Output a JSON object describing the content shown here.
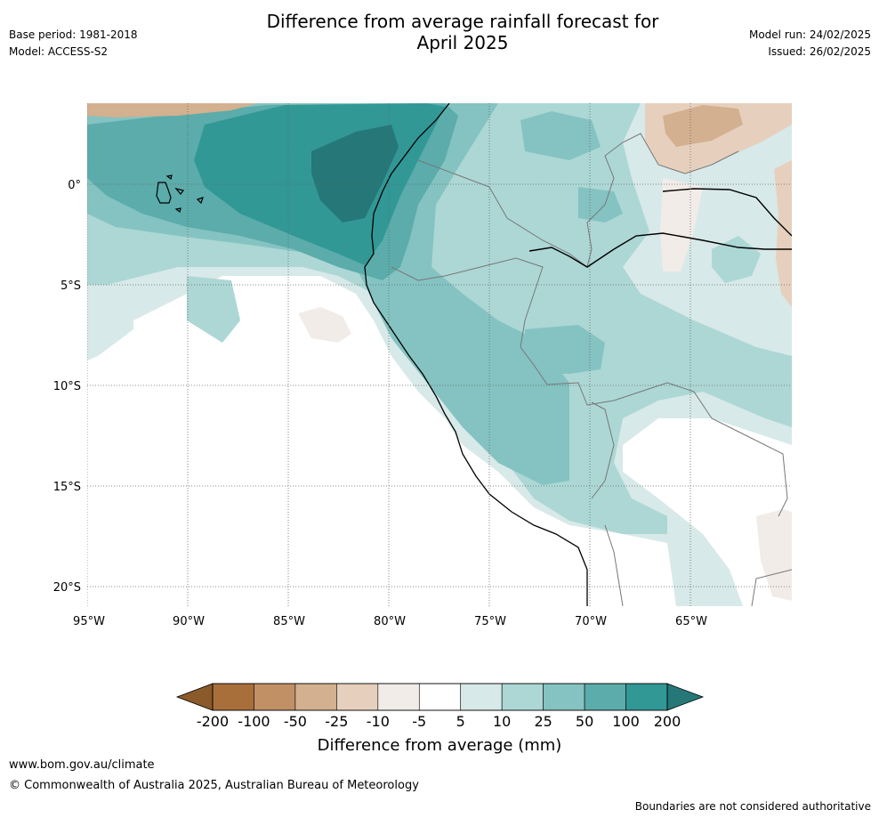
{
  "header": {
    "title_line1": "Difference from average rainfall forecast for",
    "title_line2": "April 2025",
    "base_period": "Base period: 1981-2018",
    "model": "Model: ACCESS-S2",
    "model_run": "Model run: 24/02/2025",
    "issued": "Issued: 26/02/2025"
  },
  "map": {
    "lat_labels": [
      "0°",
      "5°S",
      "10°S",
      "15°S",
      "20°S"
    ],
    "lon_labels": [
      "95°W",
      "90°W",
      "85°W",
      "80°W",
      "75°W",
      "70°W",
      "65°W"
    ]
  },
  "colorbar": {
    "labels": [
      "-200",
      "-100",
      "-50",
      "-25",
      "-10",
      "-5",
      "5",
      "10",
      "25",
      "50",
      "100",
      "200"
    ],
    "colors": [
      "#8a5a2b",
      "#a86f3b",
      "#c19065",
      "#d3b08f",
      "#e6d0bd",
      "#f2ece8",
      "#ffffff",
      "#d7e9e8",
      "#acd7d5",
      "#84c3c1",
      "#5bacab",
      "#319896",
      "#257877"
    ],
    "title": "Difference from average (mm)"
  },
  "footer": {
    "website": "www.bom.gov.au/climate",
    "copyright": "© Commonwealth of Australia 2025, Australian Bureau of Meteorology",
    "disclaimer": "Boundaries are not considered authoritative"
  }
}
